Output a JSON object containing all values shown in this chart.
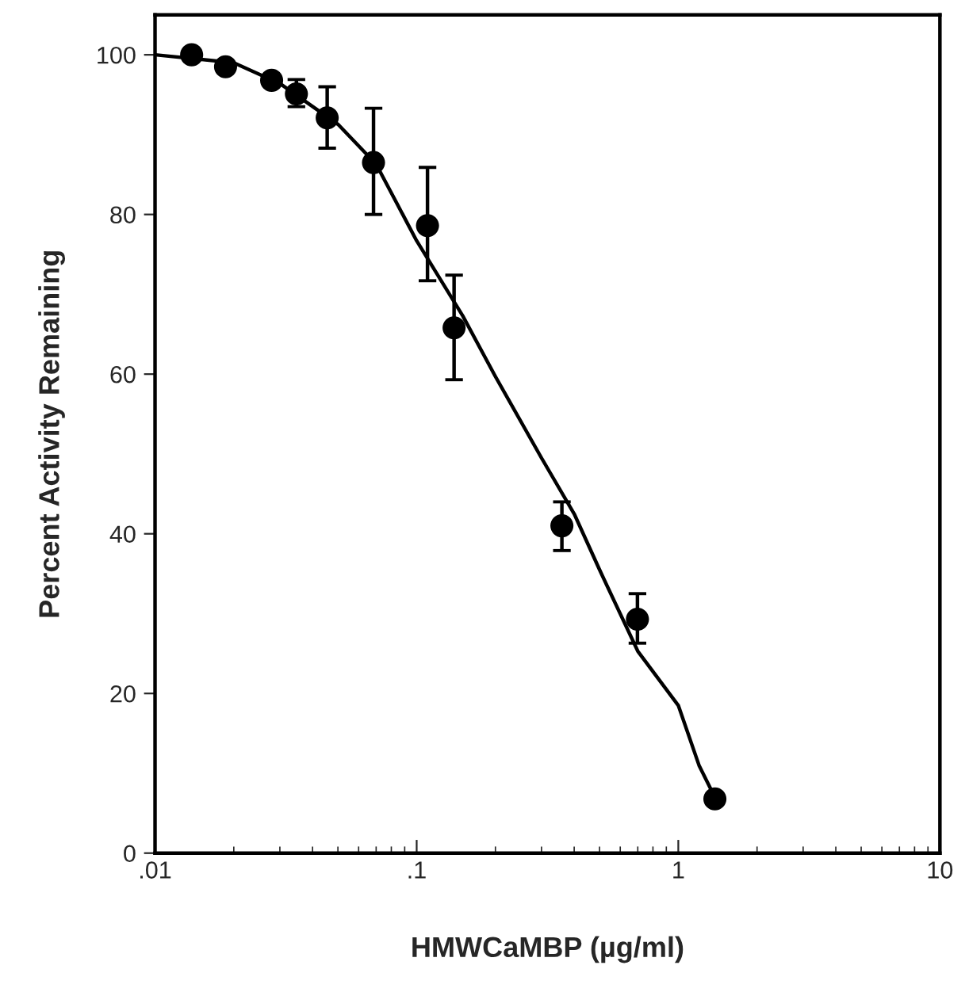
{
  "chart_data": {
    "type": "scatter",
    "xlabel": "HMWCaMBP (µg/ml)",
    "ylabel": "Percent Activity Remaining",
    "log": "x",
    "xlim": [
      0.01,
      10
    ],
    "xticks": [
      {
        "value": 0.01,
        "label": ".01"
      },
      {
        "value": 0.1,
        "label": ".1"
      },
      1,
      10
    ],
    "ylim": [
      0,
      105
    ],
    "yticks": [
      0,
      20,
      40,
      60,
      80,
      100
    ],
    "grid": false,
    "legend": false,
    "series": [
      {
        "color": "#000000",
        "marker": "circle",
        "x": [
          0.0138,
          0.0186,
          0.0279,
          0.0347,
          0.0455,
          0.0684,
          0.11,
          0.139,
          0.359,
          0.698,
          1.38
        ],
        "values": [
          100,
          98.5,
          96.8,
          95.1,
          92.1,
          86.5,
          78.6,
          65.8,
          41.0,
          29.3,
          6.8
        ],
        "errors": [
          null,
          null,
          null,
          [
            93.5,
            96.9
          ],
          [
            88.3,
            96.0
          ],
          [
            80.0,
            93.3
          ],
          [
            71.7,
            85.9
          ],
          [
            59.3,
            72.4
          ],
          [
            37.9,
            44.0
          ],
          [
            26.3,
            32.5
          ],
          null
        ]
      },
      {
        "type": "line",
        "color": "#000000",
        "line_style": "solid",
        "marker": "none",
        "x": [
          0.01,
          0.02,
          0.03,
          0.05,
          0.07,
          0.1,
          0.15,
          0.2,
          0.3,
          0.4,
          0.5,
          0.7,
          1,
          1.2,
          1.38
        ],
        "values": [
          100,
          99,
          96.4,
          91.3,
          86.3,
          76.7,
          67.3,
          59.7,
          49.5,
          42.5,
          35.5,
          25.3,
          18.5,
          11,
          7
        ]
      }
    ]
  }
}
